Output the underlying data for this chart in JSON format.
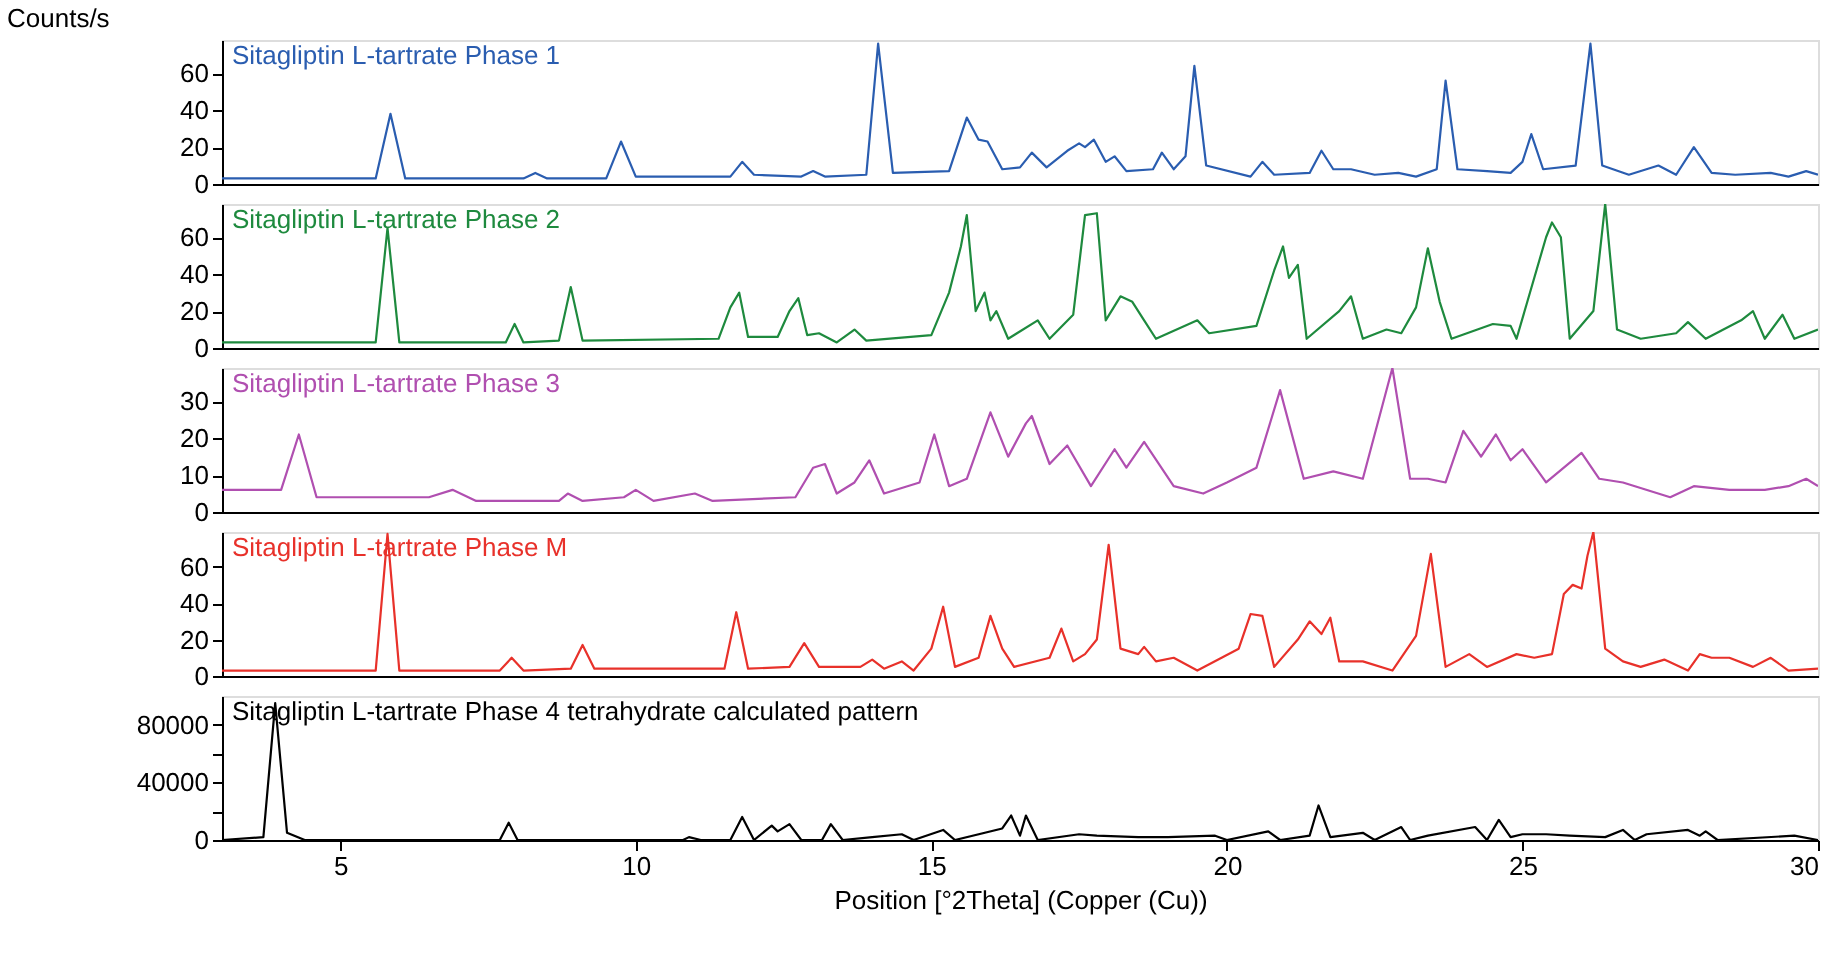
{
  "chart_data": [
    {
      "type": "line",
      "ylabel": "Counts/s",
      "xlim": [
        3,
        30
      ],
      "ylim": [
        0,
        78
      ],
      "yticks": [
        0,
        20,
        40,
        60
      ],
      "tick_labels": "y",
      "legend": false,
      "grid": false,
      "series": [
        {
          "name": "Sitagliptin L-tartrate Phase 1",
          "color": "#2a5db0",
          "x": [
            3.0,
            5.6,
            5.85,
            6.1,
            8.1,
            8.3,
            8.5,
            9.5,
            9.75,
            10.0,
            11.6,
            11.8,
            12.0,
            12.8,
            13.0,
            13.2,
            13.9,
            14.1,
            14.35,
            15.3,
            15.6,
            15.8,
            15.95,
            16.2,
            16.5,
            16.7,
            16.95,
            17.3,
            17.5,
            17.6,
            17.75,
            17.95,
            18.1,
            18.3,
            18.75,
            18.9,
            19.1,
            19.3,
            19.45,
            19.65,
            20.4,
            20.6,
            20.8,
            21.4,
            21.6,
            21.8,
            22.1,
            22.5,
            22.9,
            23.2,
            23.55,
            23.7,
            23.9,
            24.4,
            24.8,
            25.0,
            25.15,
            25.35,
            25.9,
            26.15,
            26.35,
            26.8,
            27.3,
            27.6,
            27.9,
            28.2,
            28.6,
            29.2,
            29.5,
            29.8,
            30.0
          ],
          "values": [
            3,
            3,
            38,
            3,
            3,
            6,
            3,
            3,
            23,
            4,
            4,
            12,
            5,
            4,
            7,
            4,
            5,
            76,
            6,
            7,
            36,
            24,
            23,
            8,
            9,
            17,
            9,
            18,
            22,
            20,
            24,
            12,
            15,
            7,
            8,
            17,
            8,
            15,
            64,
            10,
            4,
            12,
            5,
            6,
            18,
            8,
            8,
            5,
            6,
            4,
            8,
            56,
            8,
            7,
            6,
            12,
            27,
            8,
            10,
            76,
            10,
            5,
            10,
            5,
            20,
            6,
            5,
            6,
            4,
            7,
            5
          ]
        }
      ]
    },
    {
      "type": "line",
      "xlim": [
        3,
        30
      ],
      "ylim": [
        0,
        78
      ],
      "yticks": [
        0,
        20,
        40,
        60
      ],
      "tick_labels": "y",
      "legend": false,
      "grid": false,
      "series": [
        {
          "name": "Sitagliptin L-tartrate Phase 2",
          "color": "#1e8a3e",
          "x": [
            3.0,
            5.6,
            5.8,
            6.0,
            7.8,
            7.95,
            8.1,
            8.7,
            8.9,
            9.1,
            11.4,
            11.6,
            11.75,
            11.9,
            12.4,
            12.6,
            12.75,
            12.9,
            13.1,
            13.4,
            13.7,
            13.9,
            15.0,
            15.3,
            15.5,
            15.6,
            15.75,
            15.9,
            16.0,
            16.1,
            16.3,
            16.8,
            17.0,
            17.4,
            17.6,
            17.8,
            17.95,
            18.2,
            18.4,
            18.6,
            18.8,
            19.5,
            19.7,
            20.5,
            20.8,
            20.95,
            21.05,
            21.2,
            21.35,
            21.9,
            22.1,
            22.3,
            22.7,
            22.95,
            23.2,
            23.4,
            23.6,
            23.8,
            24.5,
            24.8,
            24.9,
            25.4,
            25.5,
            25.65,
            25.8,
            26.2,
            26.4,
            26.6,
            27.0,
            27.6,
            27.8,
            28.1,
            28.7,
            28.9,
            29.1,
            29.4,
            29.6,
            30.0
          ],
          "values": [
            3,
            3,
            65,
            3,
            3,
            13,
            3,
            4,
            33,
            4,
            5,
            22,
            30,
            6,
            6,
            20,
            27,
            7,
            8,
            3,
            10,
            4,
            7,
            30,
            55,
            72,
            20,
            30,
            15,
            20,
            5,
            15,
            5,
            18,
            72,
            73,
            15,
            28,
            25,
            15,
            5,
            15,
            8,
            12,
            42,
            55,
            38,
            45,
            5,
            20,
            28,
            5,
            10,
            8,
            22,
            54,
            25,
            5,
            13,
            12,
            5,
            60,
            68,
            60,
            5,
            20,
            78,
            10,
            5,
            8,
            14,
            5,
            15,
            20,
            5,
            18,
            5,
            10
          ]
        }
      ]
    },
    {
      "type": "line",
      "xlim": [
        3,
        30
      ],
      "ylim": [
        0,
        39
      ],
      "yticks": [
        0,
        10,
        20,
        30
      ],
      "tick_labels": "y",
      "legend": false,
      "grid": false,
      "series": [
        {
          "name": "Sitagliptin L-tartrate Phase 3",
          "color": "#b04fb0",
          "x": [
            3.0,
            4.0,
            4.3,
            4.6,
            6.5,
            6.9,
            7.3,
            8.7,
            8.85,
            9.1,
            9.8,
            10.0,
            10.3,
            11.0,
            11.3,
            12.7,
            13.0,
            13.2,
            13.4,
            13.7,
            13.95,
            14.2,
            14.8,
            15.05,
            15.3,
            15.6,
            16.0,
            16.3,
            16.6,
            16.7,
            17.0,
            17.3,
            17.7,
            18.1,
            18.3,
            18.6,
            19.1,
            19.6,
            20.0,
            20.5,
            20.9,
            21.3,
            21.8,
            22.3,
            22.8,
            23.1,
            23.4,
            23.7,
            24.0,
            24.3,
            24.55,
            24.8,
            25.0,
            25.4,
            26.0,
            26.3,
            26.7,
            27.5,
            27.9,
            28.5,
            29.1,
            29.5,
            29.8,
            30.0
          ],
          "values": [
            6,
            6,
            21,
            4,
            4,
            6,
            3,
            3,
            5,
            3,
            4,
            6,
            3,
            5,
            3,
            4,
            12,
            13,
            5,
            8,
            14,
            5,
            8,
            21,
            7,
            9,
            27,
            15,
            24,
            26,
            13,
            18,
            7,
            17,
            12,
            19,
            7,
            5,
            8,
            12,
            33,
            9,
            11,
            9,
            39,
            9,
            9,
            8,
            22,
            15,
            21,
            14,
            17,
            8,
            16,
            9,
            8,
            4,
            7,
            6,
            6,
            7,
            9,
            7
          ]
        }
      ]
    },
    {
      "type": "line",
      "xlim": [
        3,
        30
      ],
      "ylim": [
        0,
        79
      ],
      "yticks": [
        0,
        20,
        40,
        60
      ],
      "tick_labels": "y",
      "legend": false,
      "grid": false,
      "series": [
        {
          "name": "Sitagliptin L-tartrate Phase M",
          "color": "#e8312a",
          "x": [
            3.0,
            5.6,
            5.8,
            6.0,
            7.7,
            7.9,
            8.1,
            8.9,
            9.1,
            9.3,
            11.5,
            11.7,
            11.9,
            12.6,
            12.85,
            13.1,
            13.8,
            14.0,
            14.2,
            14.5,
            14.7,
            15.0,
            15.2,
            15.4,
            15.8,
            16.0,
            16.2,
            16.4,
            17.0,
            17.2,
            17.4,
            17.6,
            17.8,
            18.0,
            18.2,
            18.5,
            18.6,
            18.8,
            19.1,
            19.5,
            20.2,
            20.4,
            20.6,
            20.8,
            21.2,
            21.4,
            21.6,
            21.75,
            21.9,
            22.3,
            22.8,
            23.2,
            23.45,
            23.7,
            24.1,
            24.4,
            24.9,
            25.2,
            25.5,
            25.7,
            25.85,
            26.0,
            26.1,
            26.2,
            26.4,
            26.7,
            27.0,
            27.4,
            27.8,
            28.0,
            28.2,
            28.5,
            28.9,
            29.2,
            29.5,
            30.0
          ],
          "values": [
            3,
            3,
            78,
            3,
            3,
            10,
            3,
            4,
            17,
            4,
            4,
            35,
            4,
            5,
            18,
            5,
            5,
            9,
            4,
            8,
            3,
            15,
            38,
            5,
            10,
            33,
            15,
            5,
            10,
            26,
            8,
            12,
            20,
            72,
            15,
            12,
            16,
            8,
            10,
            3,
            15,
            34,
            33,
            5,
            20,
            30,
            23,
            32,
            8,
            8,
            3,
            22,
            67,
            5,
            12,
            5,
            12,
            10,
            12,
            45,
            50,
            48,
            66,
            79,
            15,
            8,
            5,
            9,
            3,
            12,
            10,
            10,
            5,
            10,
            3,
            4
          ]
        }
      ]
    },
    {
      "type": "line",
      "xlabel": "Position [°2Theta] (Copper (Cu))",
      "xlim": [
        3,
        30
      ],
      "xticks": [
        5,
        10,
        15,
        20,
        25,
        30
      ],
      "ylim": [
        0,
        100000
      ],
      "yticks": [
        0,
        {
          "value": 20000,
          "label": null
        },
        40000,
        {
          "value": 60000,
          "label": null
        },
        80000
      ],
      "legend": false,
      "grid": false,
      "series": [
        {
          "name": "Sitagliptin L-tartrate Phase 4 tetrahydrate calculated pattern",
          "color": "#000000",
          "x": [
            3.0,
            3.7,
            3.9,
            4.1,
            4.4,
            7.7,
            7.85,
            8.0,
            10.8,
            10.9,
            11.1,
            11.6,
            11.8,
            12.0,
            12.3,
            12.4,
            12.6,
            12.8,
            13.15,
            13.3,
            13.5,
            14.0,
            14.5,
            14.7,
            15.2,
            15.4,
            16.2,
            16.35,
            16.5,
            16.6,
            16.8,
            17.5,
            17.8,
            18.5,
            19.0,
            19.8,
            20.0,
            20.7,
            20.9,
            21.4,
            21.55,
            21.75,
            22.3,
            22.5,
            22.95,
            23.1,
            23.4,
            24.2,
            24.4,
            24.6,
            24.8,
            25.0,
            25.4,
            25.8,
            26.4,
            26.7,
            26.9,
            27.1,
            27.8,
            28.0,
            28.1,
            28.3,
            29.6,
            30.0
          ],
          "values": [
            0,
            2000,
            95000,
            5000,
            0,
            0,
            12000,
            0,
            0,
            2000,
            0,
            0,
            16000,
            0,
            10000,
            6000,
            11000,
            0,
            0,
            11000,
            0,
            2000,
            4000,
            0,
            7000,
            0,
            8000,
            17000,
            3000,
            17000,
            0,
            4000,
            3000,
            2000,
            2000,
            3000,
            0,
            6000,
            0,
            3000,
            24000,
            2000,
            5000,
            0,
            9000,
            0,
            3000,
            9000,
            0,
            14000,
            2000,
            4000,
            4000,
            3000,
            2000,
            7000,
            0,
            4000,
            7000,
            3000,
            6000,
            0,
            3000,
            0
          ]
        }
      ]
    }
  ]
}
